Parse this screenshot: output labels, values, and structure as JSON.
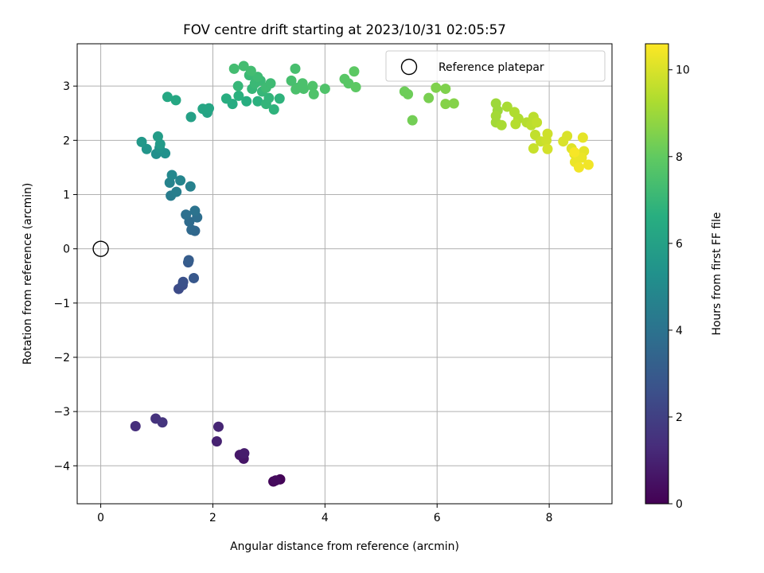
{
  "chart_data": {
    "type": "scatter",
    "title": "FOV centre drift starting at 2023/10/31 02:05:57",
    "xlabel": "Angular distance from reference (arcmin)",
    "ylabel": "Rotation from reference (arcmin)",
    "xlim": [
      -0.42,
      9.12
    ],
    "ylim": [
      -4.7,
      3.78
    ],
    "xticks": [
      0,
      2,
      4,
      6,
      8
    ],
    "yticks": [
      -4,
      -3,
      -2,
      -1,
      0,
      1,
      2,
      3
    ],
    "xtick_labels": [
      "0",
      "2",
      "4",
      "6",
      "8"
    ],
    "ytick_labels": [
      "−4",
      "−3",
      "−2",
      "−1",
      "0",
      "1",
      "2",
      "3"
    ],
    "grid": true,
    "legend": {
      "placement": "upper right",
      "entries": [
        {
          "label": "Reference platepar",
          "marker": "open circle"
        }
      ]
    },
    "reference_point": {
      "x": 0,
      "y": 0
    },
    "colorbar": {
      "label": "Hours from first FF file",
      "colormap": "viridis",
      "range": [
        0,
        10.6
      ],
      "ticks": [
        0,
        2,
        4,
        6,
        8,
        10
      ],
      "tick_labels": [
        "0",
        "2",
        "4",
        "6",
        "8",
        "10"
      ]
    },
    "points": [
      {
        "x": 3.2,
        "y": -4.25,
        "h": 0.1
      },
      {
        "x": 3.08,
        "y": -4.29,
        "h": 0.2
      },
      {
        "x": 3.12,
        "y": -4.27,
        "h": 0.3
      },
      {
        "x": 2.55,
        "y": -3.87,
        "h": 0.6
      },
      {
        "x": 2.48,
        "y": -3.8,
        "h": 0.7
      },
      {
        "x": 2.56,
        "y": -3.77,
        "h": 0.8
      },
      {
        "x": 2.07,
        "y": -3.55,
        "h": 1.0
      },
      {
        "x": 2.1,
        "y": -3.28,
        "h": 1.1
      },
      {
        "x": 0.62,
        "y": -3.27,
        "h": 1.4
      },
      {
        "x": 0.98,
        "y": -3.13,
        "h": 1.5
      },
      {
        "x": 1.1,
        "y": -3.2,
        "h": 1.6
      },
      {
        "x": 1.39,
        "y": -0.74,
        "h": 2.4
      },
      {
        "x": 1.46,
        "y": -0.67,
        "h": 2.5
      },
      {
        "x": 1.47,
        "y": -0.61,
        "h": 2.6
      },
      {
        "x": 1.66,
        "y": -0.54,
        "h": 2.9
      },
      {
        "x": 1.56,
        "y": -0.25,
        "h": 3.0
      },
      {
        "x": 1.57,
        "y": -0.21,
        "h": 3.1
      },
      {
        "x": 1.68,
        "y": 0.33,
        "h": 3.5
      },
      {
        "x": 1.62,
        "y": 0.35,
        "h": 3.6
      },
      {
        "x": 1.58,
        "y": 0.5,
        "h": 3.7
      },
      {
        "x": 1.72,
        "y": 0.58,
        "h": 3.8
      },
      {
        "x": 1.52,
        "y": 0.63,
        "h": 3.9
      },
      {
        "x": 1.68,
        "y": 0.7,
        "h": 4.0
      },
      {
        "x": 1.25,
        "y": 0.98,
        "h": 4.4
      },
      {
        "x": 1.35,
        "y": 1.05,
        "h": 4.5
      },
      {
        "x": 1.6,
        "y": 1.15,
        "h": 4.6
      },
      {
        "x": 1.23,
        "y": 1.22,
        "h": 4.7
      },
      {
        "x": 1.42,
        "y": 1.26,
        "h": 4.8
      },
      {
        "x": 1.27,
        "y": 1.36,
        "h": 4.9
      },
      {
        "x": 0.99,
        "y": 1.75,
        "h": 5.2
      },
      {
        "x": 1.15,
        "y": 1.76,
        "h": 5.3
      },
      {
        "x": 1.05,
        "y": 1.86,
        "h": 5.4
      },
      {
        "x": 0.82,
        "y": 1.84,
        "h": 5.5
      },
      {
        "x": 0.73,
        "y": 1.97,
        "h": 5.6
      },
      {
        "x": 1.06,
        "y": 1.93,
        "h": 5.7
      },
      {
        "x": 1.02,
        "y": 2.07,
        "h": 5.8
      },
      {
        "x": 1.61,
        "y": 2.43,
        "h": 6.0
      },
      {
        "x": 1.9,
        "y": 2.51,
        "h": 6.1
      },
      {
        "x": 1.82,
        "y": 2.58,
        "h": 6.2
      },
      {
        "x": 1.93,
        "y": 2.59,
        "h": 6.2
      },
      {
        "x": 1.34,
        "y": 2.74,
        "h": 6.3
      },
      {
        "x": 1.19,
        "y": 2.8,
        "h": 6.3
      },
      {
        "x": 2.35,
        "y": 2.67,
        "h": 6.5
      },
      {
        "x": 2.24,
        "y": 2.77,
        "h": 6.6
      },
      {
        "x": 2.6,
        "y": 2.72,
        "h": 6.6
      },
      {
        "x": 2.46,
        "y": 2.82,
        "h": 6.7
      },
      {
        "x": 2.8,
        "y": 2.72,
        "h": 6.7
      },
      {
        "x": 3.09,
        "y": 2.57,
        "h": 6.8
      },
      {
        "x": 3.19,
        "y": 2.77,
        "h": 6.8
      },
      {
        "x": 2.95,
        "y": 2.67,
        "h": 6.9
      },
      {
        "x": 3.0,
        "y": 2.78,
        "h": 6.9
      },
      {
        "x": 2.88,
        "y": 2.9,
        "h": 7.0
      },
      {
        "x": 2.7,
        "y": 2.95,
        "h": 7.0
      },
      {
        "x": 2.45,
        "y": 3.0,
        "h": 7.0
      },
      {
        "x": 2.75,
        "y": 3.05,
        "h": 7.1
      },
      {
        "x": 2.85,
        "y": 3.1,
        "h": 7.1
      },
      {
        "x": 2.65,
        "y": 3.2,
        "h": 7.1
      },
      {
        "x": 2.8,
        "y": 3.17,
        "h": 7.2
      },
      {
        "x": 2.95,
        "y": 2.97,
        "h": 7.2
      },
      {
        "x": 3.03,
        "y": 3.05,
        "h": 7.2
      },
      {
        "x": 2.38,
        "y": 3.32,
        "h": 7.3
      },
      {
        "x": 2.55,
        "y": 3.37,
        "h": 7.3
      },
      {
        "x": 2.68,
        "y": 3.28,
        "h": 7.3
      },
      {
        "x": 3.4,
        "y": 3.1,
        "h": 7.4
      },
      {
        "x": 3.47,
        "y": 3.32,
        "h": 7.4
      },
      {
        "x": 3.52,
        "y": 2.97,
        "h": 7.4
      },
      {
        "x": 3.6,
        "y": 3.05,
        "h": 7.5
      },
      {
        "x": 3.48,
        "y": 2.94,
        "h": 7.5
      },
      {
        "x": 3.62,
        "y": 2.95,
        "h": 7.5
      },
      {
        "x": 3.8,
        "y": 2.85,
        "h": 7.6
      },
      {
        "x": 3.78,
        "y": 3.0,
        "h": 7.6
      },
      {
        "x": 4.0,
        "y": 2.95,
        "h": 7.6
      },
      {
        "x": 4.35,
        "y": 3.13,
        "h": 7.8
      },
      {
        "x": 4.42,
        "y": 3.05,
        "h": 7.8
      },
      {
        "x": 4.52,
        "y": 3.27,
        "h": 7.9
      },
      {
        "x": 4.55,
        "y": 2.98,
        "h": 7.9
      },
      {
        "x": 5.42,
        "y": 2.9,
        "h": 8.2
      },
      {
        "x": 5.48,
        "y": 2.85,
        "h": 8.2
      },
      {
        "x": 5.56,
        "y": 2.37,
        "h": 8.3
      },
      {
        "x": 5.85,
        "y": 2.78,
        "h": 8.4
      },
      {
        "x": 5.98,
        "y": 2.97,
        "h": 8.5
      },
      {
        "x": 6.15,
        "y": 2.95,
        "h": 8.5
      },
      {
        "x": 6.15,
        "y": 2.67,
        "h": 8.6
      },
      {
        "x": 6.3,
        "y": 2.68,
        "h": 8.6
      },
      {
        "x": 7.05,
        "y": 2.68,
        "h": 9.0
      },
      {
        "x": 7.08,
        "y": 2.55,
        "h": 9.0
      },
      {
        "x": 7.05,
        "y": 2.45,
        "h": 9.1
      },
      {
        "x": 7.05,
        "y": 2.33,
        "h": 9.1
      },
      {
        "x": 7.15,
        "y": 2.28,
        "h": 9.2
      },
      {
        "x": 7.25,
        "y": 2.62,
        "h": 9.2
      },
      {
        "x": 7.38,
        "y": 2.52,
        "h": 9.3
      },
      {
        "x": 7.45,
        "y": 2.4,
        "h": 9.3
      },
      {
        "x": 7.4,
        "y": 2.3,
        "h": 9.4
      },
      {
        "x": 7.6,
        "y": 2.33,
        "h": 9.4
      },
      {
        "x": 7.68,
        "y": 2.28,
        "h": 9.5
      },
      {
        "x": 7.72,
        "y": 2.43,
        "h": 9.5
      },
      {
        "x": 7.78,
        "y": 2.33,
        "h": 9.6
      },
      {
        "x": 7.75,
        "y": 2.1,
        "h": 9.6
      },
      {
        "x": 7.72,
        "y": 1.85,
        "h": 9.7
      },
      {
        "x": 7.85,
        "y": 1.98,
        "h": 9.7
      },
      {
        "x": 7.97,
        "y": 2.12,
        "h": 9.8
      },
      {
        "x": 7.95,
        "y": 2.0,
        "h": 9.8
      },
      {
        "x": 7.97,
        "y": 1.84,
        "h": 9.9
      },
      {
        "x": 8.25,
        "y": 1.98,
        "h": 10.0
      },
      {
        "x": 8.32,
        "y": 2.08,
        "h": 10.0
      },
      {
        "x": 8.4,
        "y": 1.85,
        "h": 10.1
      },
      {
        "x": 8.45,
        "y": 1.75,
        "h": 10.1
      },
      {
        "x": 8.6,
        "y": 2.05,
        "h": 10.2
      },
      {
        "x": 8.62,
        "y": 1.8,
        "h": 10.2
      },
      {
        "x": 8.58,
        "y": 1.68,
        "h": 10.3
      },
      {
        "x": 8.46,
        "y": 1.6,
        "h": 10.3
      },
      {
        "x": 8.53,
        "y": 1.5,
        "h": 10.4
      },
      {
        "x": 8.7,
        "y": 1.55,
        "h": 10.4
      },
      {
        "x": 8.45,
        "y": 1.78,
        "h": 10.5
      }
    ]
  }
}
